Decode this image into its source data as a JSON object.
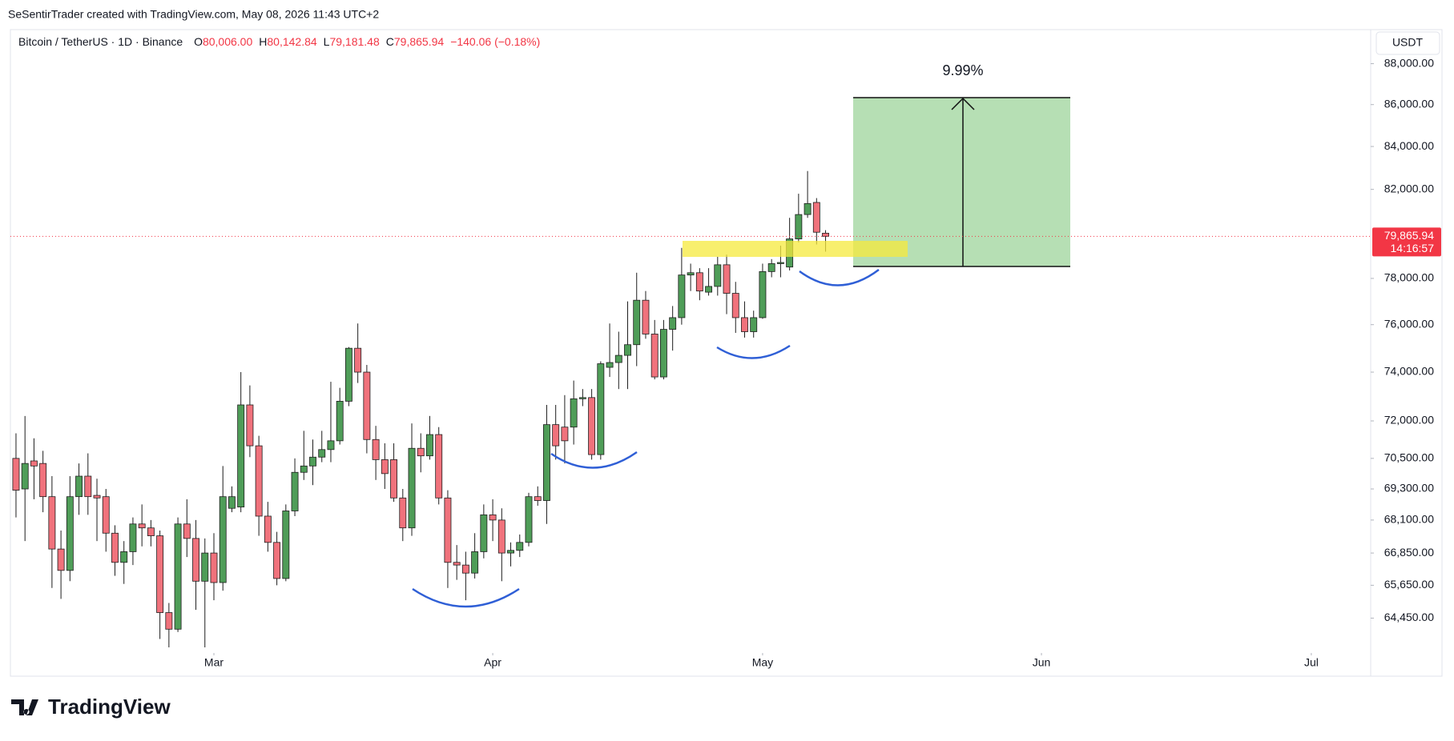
{
  "credit": "SeSentirTrader created with TradingView.com, May 08, 2026 11:43 UTC+2",
  "brand": "TradingView",
  "chart_data": {
    "type": "candlestick",
    "symbol": "Bitcoin / TetherUS · 1D · Binance",
    "ohlc_legend": [
      {
        "key": "O",
        "value": "80,006.00"
      },
      {
        "key": "H",
        "value": "80,142.84"
      },
      {
        "key": "L",
        "value": "79,181.48"
      },
      {
        "key": "C",
        "value": "79,865.94"
      }
    ],
    "change": "−140.06 (−0.18%)",
    "currency": "USDT",
    "annotation": "9.99%",
    "last_price": {
      "value": 79865.94,
      "label": "79,865.94"
    },
    "countdown": "14:16:57",
    "log_scale": true,
    "up_color": "#4f9d58",
    "down_color": "#f0727c",
    "wick_color": "#1e1e1e",
    "open": [
      70500,
      69300,
      70400,
      70300,
      69000,
      67000,
      66200,
      69000,
      69800,
      69050,
      69000,
      67600,
      66500,
      66900,
      67950,
      67800,
      67500,
      64650,
      64050,
      67950,
      67400,
      65800,
      66850,
      65750,
      68550,
      68600,
      72650,
      71000,
      68250,
      67250,
      65900,
      68450,
      69950,
      70200,
      70550,
      70850,
      71200,
      72800,
      75000,
      74000,
      71250,
      70450,
      70450,
      68950,
      67800,
      70900,
      70600,
      71450,
      68950,
      66500,
      66400,
      66100,
      66900,
      68300,
      68100,
      66850,
      66950,
      67250,
      69000,
      68850,
      71850,
      71750,
      71750,
      72900,
      72950,
      70650,
      74200,
      74400,
      74700,
      75150,
      77050,
      75600,
      73800,
      75800,
      76300,
      78150,
      78250,
      77400,
      77650,
      78600,
      77350,
      76300,
      75700,
      76300,
      78300,
      78650,
      78500,
      79750,
      80850,
      81400,
      80006
    ],
    "high": [
      71500,
      72200,
      71300,
      70800,
      69800,
      67700,
      69800,
      70300,
      70700,
      69700,
      69300,
      67900,
      67300,
      68200,
      68700,
      68100,
      67700,
      65000,
      68200,
      68900,
      68100,
      67400,
      67600,
      70200,
      69400,
      74000,
      73450,
      71400,
      68800,
      67650,
      68700,
      70500,
      71600,
      71250,
      71600,
      73600,
      73350,
      75050,
      76050,
      74300,
      71800,
      71100,
      71100,
      69300,
      71900,
      71500,
      72200,
      71750,
      69250,
      67150,
      66900,
      67600,
      68700,
      68900,
      68550,
      67250,
      67550,
      69150,
      69400,
      72650,
      72650,
      73050,
      73650,
      73300,
      73300,
      74450,
      76050,
      75700,
      77000,
      78250,
      77450,
      76200,
      76200,
      76800,
      79350,
      78650,
      78450,
      78450,
      78950,
      79050,
      77850,
      77000,
      76600,
      78650,
      78850,
      79450,
      80700,
      81800,
      82850,
      81600,
      80142.84
    ],
    "low": [
      68200,
      67300,
      68900,
      68400,
      65550,
      65150,
      65800,
      68300,
      68300,
      67300,
      66900,
      66000,
      65700,
      66400,
      67100,
      67100,
      63700,
      63400,
      63950,
      66700,
      64750,
      63400,
      65100,
      65450,
      68400,
      68400,
      70550,
      67500,
      66900,
      65650,
      65800,
      68250,
      69650,
      69450,
      70350,
      70350,
      71050,
      72600,
      73550,
      70700,
      69650,
      69300,
      68800,
      67300,
      67500,
      69950,
      70450,
      68700,
      65550,
      65850,
      65100,
      65900,
      66650,
      67300,
      65800,
      66350,
      66700,
      67100,
      68650,
      67950,
      70450,
      70300,
      71050,
      72600,
      70450,
      70450,
      73800,
      73300,
      73300,
      74250,
      75400,
      73700,
      73700,
      74900,
      76000,
      77450,
      77050,
      77250,
      77250,
      76450,
      75650,
      75450,
      75450,
      76250,
      78050,
      78050,
      78350,
      79600,
      80700,
      79500,
      79181.48
    ],
    "close": [
      69250,
      70300,
      70200,
      69000,
      67000,
      66200,
      69000,
      69800,
      69000,
      68950,
      67600,
      66500,
      66900,
      67950,
      67800,
      67500,
      64650,
      64050,
      67950,
      67400,
      65800,
      66850,
      65750,
      69000,
      69000,
      72650,
      71000,
      68250,
      67250,
      65900,
      68450,
      69950,
      70200,
      70550,
      70850,
      71200,
      72800,
      75000,
      74000,
      71250,
      70450,
      69900,
      68950,
      67800,
      70900,
      70600,
      71450,
      68950,
      66500,
      66400,
      66100,
      66900,
      68300,
      68100,
      66850,
      66950,
      67250,
      69000,
      68850,
      71850,
      71000,
      71200,
      72900,
      72950,
      70650,
      74350,
      74400,
      74700,
      75150,
      77050,
      75600,
      73800,
      75800,
      76300,
      78150,
      78250,
      77450,
      77650,
      78600,
      77350,
      76300,
      75700,
      76300,
      78300,
      78650,
      78700,
      79750,
      80850,
      81350,
      80050,
      79865.94
    ],
    "xlim": [
      -0.62,
      150.6
    ],
    "xticks": [
      {
        "value": 22,
        "label": "Mar"
      },
      {
        "value": 53,
        "label": "Apr"
      },
      {
        "value": 83,
        "label": "May"
      },
      {
        "value": 114,
        "label": "Jun"
      },
      {
        "value": 144,
        "label": "Jul"
      }
    ],
    "ylim": [
      63200,
      89700
    ],
    "yticks": [
      {
        "value": 88000,
        "label": "88,000.00"
      },
      {
        "value": 86000,
        "label": "86,000.00"
      },
      {
        "value": 84000,
        "label": "84,000.00"
      },
      {
        "value": 82000,
        "label": "82,000.00"
      },
      {
        "value": 78000,
        "label": "78,000.00"
      },
      {
        "value": 76000,
        "label": "76,000.00"
      },
      {
        "value": 74000,
        "label": "74,000.00"
      },
      {
        "value": 72000,
        "label": "72,000.00"
      },
      {
        "value": 70500,
        "label": "70,500.00"
      },
      {
        "value": 69300,
        "label": "69,300.00"
      },
      {
        "value": 68100,
        "label": "68,100.00"
      },
      {
        "value": 66850,
        "label": "66,850.00"
      },
      {
        "value": 65650,
        "label": "65,650.00"
      },
      {
        "value": 64450,
        "label": "64,450.00"
      }
    ]
  }
}
